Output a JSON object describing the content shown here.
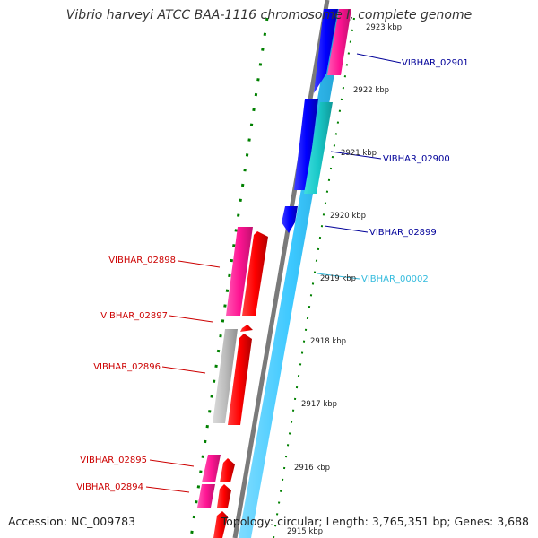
{
  "title": "Vibrio harveyi ATCC BAA-1116 chromosome I, complete genome",
  "footer": {
    "accession": "Accession: NC_009783",
    "topology": "Topology: circular; Length: 3,765,351 bp; Genes: 3,688"
  },
  "colors": {
    "forward_cds": "#ff0000",
    "forward_cds_dark": "#c80000",
    "magenta_gene": "#ff1493",
    "grey_gene": "#bdbdbd",
    "blue_gene": "#0000ff",
    "light_blue_backbone": "#3cc8ff",
    "teal_gene": "#19c8c8",
    "tick_green": "#008000",
    "label_red": "#cc0000",
    "label_blue": "#000099",
    "label_cyan": "#33bbdd"
  },
  "ticks": [
    {
      "label": "2923 kbp"
    },
    {
      "label": "2922 kbp"
    },
    {
      "label": "2921 kbp"
    },
    {
      "label": "2920 kbp"
    },
    {
      "label": "2919 kbp"
    },
    {
      "label": "2918 kbp"
    },
    {
      "label": "2917 kbp"
    },
    {
      "label": "2916 kbp"
    },
    {
      "label": "2915 kbp"
    }
  ],
  "genes": [
    {
      "name": "VIBHAR_02901",
      "color": "label_blue"
    },
    {
      "name": "VIBHAR_02900",
      "color": "label_blue"
    },
    {
      "name": "VIBHAR_02899",
      "color": "label_blue"
    },
    {
      "name": "VIBHAR_00002",
      "color": "label_cyan"
    },
    {
      "name": "VIBHAR_02898",
      "color": "label_red"
    },
    {
      "name": "VIBHAR_02897",
      "color": "label_red"
    },
    {
      "name": "VIBHAR_02896",
      "color": "label_red"
    },
    {
      "name": "VIBHAR_02895",
      "color": "label_red"
    },
    {
      "name": "VIBHAR_02894",
      "color": "label_red"
    }
  ]
}
